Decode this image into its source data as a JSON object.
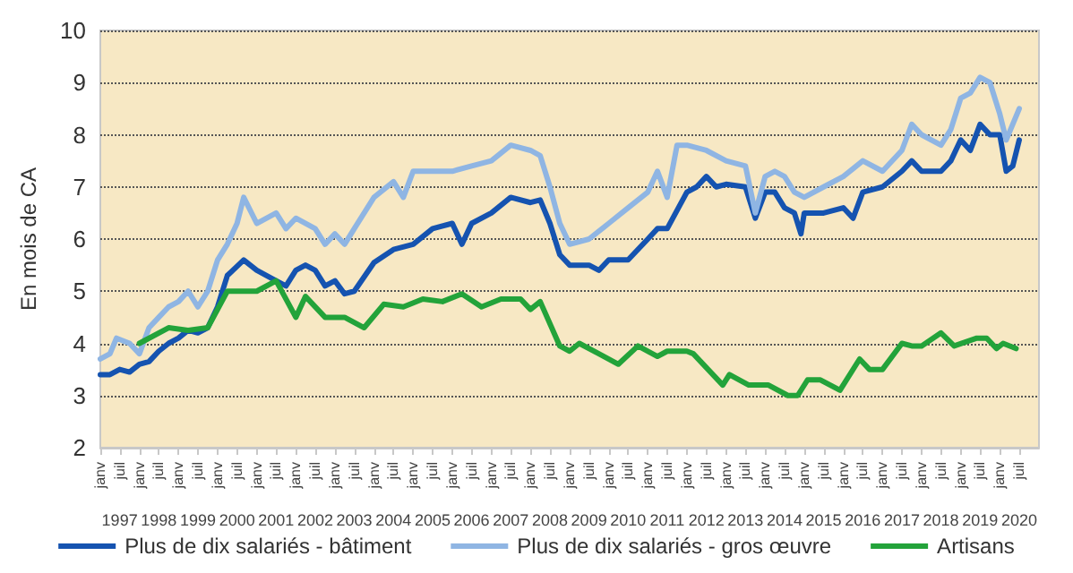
{
  "chart_data": {
    "type": "line",
    "ylabel": "En mois de CA",
    "ylim": [
      2,
      10
    ],
    "yticks": [
      2,
      3,
      4,
      5,
      6,
      7,
      8,
      9,
      10
    ],
    "grid": "y",
    "legend": "bottom",
    "marker": "none",
    "line_style": "solid",
    "xlim": [
      "1997-01",
      "2021-01"
    ],
    "xticks": [
      {
        "value": "1997-01",
        "label": "janv"
      },
      {
        "value": "1997-07",
        "label": "juil"
      },
      {
        "value": "1998-01",
        "label": "janv"
      },
      {
        "value": "1998-07",
        "label": "juil"
      },
      {
        "value": "1999-01",
        "label": "janv"
      },
      {
        "value": "1999-07",
        "label": "juil"
      },
      {
        "value": "2000-01",
        "label": "janv"
      },
      {
        "value": "2000-07",
        "label": "juil"
      },
      {
        "value": "2001-01",
        "label": "janv"
      },
      {
        "value": "2001-07",
        "label": "juil"
      },
      {
        "value": "2002-01",
        "label": "janv"
      },
      {
        "value": "2002-07",
        "label": "juil"
      },
      {
        "value": "2003-01",
        "label": "janv"
      },
      {
        "value": "2003-07",
        "label": "juil"
      },
      {
        "value": "2004-01",
        "label": "janv"
      },
      {
        "value": "2004-07",
        "label": "juil"
      },
      {
        "value": "2005-01",
        "label": "janv"
      },
      {
        "value": "2005-07",
        "label": "juil"
      },
      {
        "value": "2006-01",
        "label": "janv"
      },
      {
        "value": "2006-07",
        "label": "juil"
      },
      {
        "value": "2007-01",
        "label": "janv"
      },
      {
        "value": "2007-07",
        "label": "juil"
      },
      {
        "value": "2008-01",
        "label": "janv"
      },
      {
        "value": "2008-07",
        "label": "juil"
      },
      {
        "value": "2009-01",
        "label": "janv"
      },
      {
        "value": "2009-07",
        "label": "juil"
      },
      {
        "value": "2010-01",
        "label": "janv"
      },
      {
        "value": "2010-07",
        "label": "juil"
      },
      {
        "value": "2011-01",
        "label": "janv"
      },
      {
        "value": "2011-07",
        "label": "juil"
      },
      {
        "value": "2012-01",
        "label": "janv"
      },
      {
        "value": "2012-07",
        "label": "juil"
      },
      {
        "value": "2013-01",
        "label": "janv"
      },
      {
        "value": "2013-07",
        "label": "juil"
      },
      {
        "value": "2014-01",
        "label": "janv"
      },
      {
        "value": "2014-07",
        "label": "juil"
      },
      {
        "value": "2015-01",
        "label": "janv"
      },
      {
        "value": "2015-07",
        "label": "juil"
      },
      {
        "value": "2016-01",
        "label": "janv"
      },
      {
        "value": "2016-07",
        "label": "juil"
      },
      {
        "value": "2017-01",
        "label": "janv"
      },
      {
        "value": "2017-07",
        "label": "juil"
      },
      {
        "value": "2018-01",
        "label": "janv"
      },
      {
        "value": "2018-07",
        "label": "juil"
      },
      {
        "value": "2019-01",
        "label": "janv"
      },
      {
        "value": "2019-07",
        "label": "juil"
      },
      {
        "value": "2020-01",
        "label": "janv"
      },
      {
        "value": "2020-07",
        "label": "juil"
      }
    ],
    "x2lim": [
      "1997-01",
      "2021-01"
    ],
    "x2ticks": [
      {
        "value": "1997-07",
        "label": "1997"
      },
      {
        "value": "1998-07",
        "label": "1998"
      },
      {
        "value": "1999-07",
        "label": "1999"
      },
      {
        "value": "2000-07",
        "label": "2000"
      },
      {
        "value": "2001-07",
        "label": "2001"
      },
      {
        "value": "2002-07",
        "label": "2002"
      },
      {
        "value": "2003-07",
        "label": "2003"
      },
      {
        "value": "2004-07",
        "label": "2004"
      },
      {
        "value": "2005-07",
        "label": "2005"
      },
      {
        "value": "2006-07",
        "label": "2006"
      },
      {
        "value": "2007-07",
        "label": "2007"
      },
      {
        "value": "2008-07",
        "label": "2008"
      },
      {
        "value": "2009-07",
        "label": "2009"
      },
      {
        "value": "2010-07",
        "label": "2010"
      },
      {
        "value": "2011-07",
        "label": "2011"
      },
      {
        "value": "2012-07",
        "label": "2012"
      },
      {
        "value": "2013-07",
        "label": "2013"
      },
      {
        "value": "2014-07",
        "label": "2014"
      },
      {
        "value": "2015-07",
        "label": "2015"
      },
      {
        "value": "2016-07",
        "label": "2016"
      },
      {
        "value": "2017-07",
        "label": "2017"
      },
      {
        "value": "2018-07",
        "label": "2018"
      },
      {
        "value": "2019-07",
        "label": "2019"
      },
      {
        "value": "2020-07",
        "label": "2020"
      }
    ],
    "series": [
      {
        "name": "Plus de dix salariés - bâtiment",
        "color": "#1553b0",
        "x": [
          "1997-01",
          "1997-04",
          "1997-07",
          "1997-10",
          "1998-01",
          "1998-04",
          "1998-07",
          "1998-10",
          "1999-01",
          "1999-04",
          "1999-07",
          "1999-10",
          "2000-01",
          "2000-04",
          "2000-09",
          "2001-01",
          "2001-07",
          "2001-10",
          "2002-01",
          "2002-04",
          "2002-07",
          "2002-10",
          "2003-01",
          "2003-04",
          "2003-07",
          "2004-01",
          "2004-07",
          "2005-01",
          "2005-07",
          "2006-01",
          "2006-04",
          "2006-07",
          "2007-01",
          "2007-07",
          "2008-01",
          "2008-04",
          "2008-07",
          "2008-10",
          "2009-01",
          "2009-07",
          "2009-10",
          "2010-01",
          "2010-07",
          "2011-01",
          "2011-04",
          "2011-07",
          "2012-01",
          "2012-04",
          "2012-07",
          "2012-10",
          "2013-01",
          "2013-07",
          "2013-10",
          "2014-01",
          "2014-04",
          "2014-07",
          "2014-10",
          "2014-12",
          "2015-01",
          "2015-07",
          "2016-01",
          "2016-04",
          "2016-07",
          "2017-01",
          "2017-07",
          "2017-10",
          "2018-01",
          "2018-07",
          "2018-10",
          "2019-01",
          "2019-04",
          "2019-07",
          "2019-10",
          "2020-01",
          "2020-03",
          "2020-05",
          "2020-07"
        ],
        "values": [
          3.4,
          3.4,
          3.5,
          3.45,
          3.6,
          3.65,
          3.85,
          4.0,
          4.1,
          4.25,
          4.2,
          4.3,
          4.7,
          5.3,
          5.6,
          5.4,
          5.2,
          5.1,
          5.4,
          5.5,
          5.4,
          5.1,
          5.2,
          4.95,
          5.0,
          5.55,
          5.8,
          5.9,
          6.2,
          6.3,
          5.9,
          6.3,
          6.5,
          6.8,
          6.7,
          6.75,
          6.3,
          5.7,
          5.5,
          5.5,
          5.4,
          5.6,
          5.6,
          6.0,
          6.2,
          6.2,
          6.9,
          7.0,
          7.2,
          7.0,
          7.05,
          7.0,
          6.4,
          6.9,
          6.9,
          6.6,
          6.5,
          6.1,
          6.5,
          6.5,
          6.6,
          6.4,
          6.9,
          7.0,
          7.3,
          7.5,
          7.3,
          7.3,
          7.5,
          7.9,
          7.7,
          8.2,
          8.0,
          8.0,
          7.3,
          7.4,
          7.9
        ]
      },
      {
        "name": "Plus de dix salariés - gros œuvre",
        "color": "#8fb5e3",
        "x": [
          "1997-01",
          "1997-04",
          "1997-06",
          "1997-10",
          "1998-01",
          "1998-04",
          "1998-07",
          "1998-10",
          "1999-01",
          "1999-04",
          "1999-07",
          "1999-10",
          "2000-01",
          "2000-04",
          "2000-07",
          "2000-09",
          "2001-01",
          "2001-07",
          "2001-10",
          "2002-01",
          "2002-07",
          "2002-10",
          "2003-01",
          "2003-04",
          "2003-07",
          "2004-01",
          "2004-07",
          "2004-10",
          "2005-01",
          "2005-07",
          "2006-01",
          "2006-07",
          "2007-01",
          "2007-07",
          "2008-01",
          "2008-04",
          "2008-07",
          "2008-10",
          "2009-01",
          "2009-07",
          "2010-01",
          "2010-07",
          "2011-01",
          "2011-04",
          "2011-07",
          "2011-10",
          "2012-01",
          "2012-07",
          "2013-01",
          "2013-07",
          "2013-10",
          "2014-01",
          "2014-04",
          "2014-07",
          "2014-10",
          "2015-01",
          "2015-07",
          "2016-01",
          "2016-07",
          "2017-01",
          "2017-07",
          "2017-10",
          "2018-01",
          "2018-07",
          "2018-10",
          "2019-01",
          "2019-04",
          "2019-07",
          "2019-10",
          "2020-01",
          "2020-03",
          "2020-07"
        ],
        "values": [
          3.7,
          3.8,
          4.1,
          4.0,
          3.8,
          4.3,
          4.5,
          4.7,
          4.8,
          5.0,
          4.7,
          5.0,
          5.6,
          5.9,
          6.3,
          6.8,
          6.3,
          6.5,
          6.2,
          6.4,
          6.2,
          5.9,
          6.1,
          5.9,
          6.2,
          6.8,
          7.1,
          6.8,
          7.3,
          7.3,
          7.3,
          7.4,
          7.5,
          7.8,
          7.7,
          7.6,
          7.0,
          6.3,
          5.9,
          6.0,
          6.3,
          6.6,
          6.9,
          7.3,
          6.8,
          7.8,
          7.8,
          7.7,
          7.5,
          7.4,
          6.5,
          7.2,
          7.3,
          7.2,
          6.9,
          6.8,
          7.0,
          7.2,
          7.5,
          7.3,
          7.7,
          8.2,
          8.0,
          7.8,
          8.1,
          8.7,
          8.8,
          9.1,
          9.0,
          8.4,
          7.9,
          8.5
        ]
      },
      {
        "name": "Artisans",
        "color": "#23a33a",
        "x": [
          "1998-01",
          "1998-10",
          "1999-04",
          "1999-10",
          "2000-04",
          "2001-01",
          "2001-07",
          "2002-01",
          "2002-04",
          "2002-10",
          "2003-04",
          "2003-10",
          "2004-04",
          "2004-10",
          "2005-04",
          "2005-10",
          "2006-04",
          "2006-10",
          "2007-04",
          "2007-10",
          "2008-01",
          "2008-04",
          "2008-10",
          "2009-01",
          "2009-04",
          "2009-10",
          "2010-04",
          "2010-10",
          "2011-04",
          "2011-07",
          "2012-01",
          "2012-03",
          "2012-12",
          "2013-02",
          "2013-08",
          "2014-02",
          "2014-08",
          "2014-11",
          "2015-02",
          "2015-06",
          "2015-12",
          "2016-06",
          "2016-09",
          "2017-01",
          "2017-07",
          "2017-10",
          "2018-01",
          "2018-07",
          "2018-11",
          "2019-06",
          "2019-09",
          "2019-12",
          "2020-02",
          "2020-06"
        ],
        "values": [
          4.0,
          4.3,
          4.25,
          4.3,
          5.0,
          5.0,
          5.2,
          4.5,
          4.9,
          4.5,
          4.5,
          4.3,
          4.75,
          4.7,
          4.85,
          4.8,
          4.95,
          4.7,
          4.85,
          4.85,
          4.65,
          4.8,
          3.95,
          3.85,
          4.0,
          3.8,
          3.6,
          3.95,
          3.75,
          3.85,
          3.85,
          3.8,
          3.2,
          3.4,
          3.2,
          3.2,
          3.0,
          3.0,
          3.3,
          3.3,
          3.1,
          3.7,
          3.5,
          3.5,
          4.0,
          3.95,
          3.95,
          4.2,
          3.95,
          4.1,
          4.1,
          3.9,
          4.0,
          3.9
        ]
      }
    ]
  }
}
